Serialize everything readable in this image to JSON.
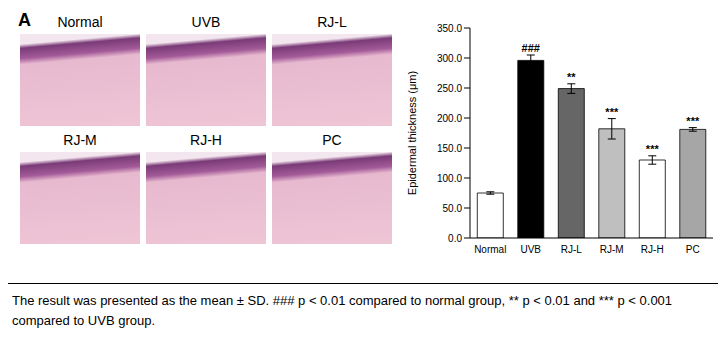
{
  "panel_label": "A",
  "images": [
    "Normal",
    "UVB",
    "RJ-L",
    "RJ-M",
    "RJ-H",
    "PC"
  ],
  "caption": "The result was presented as the mean ± SD. ### p < 0.01 compared to normal group, ** p < 0.01 and *** p < 0.001 compared to UVB group.",
  "chart_data": {
    "type": "bar",
    "y_label": "Epidermal thickness (μm)",
    "categories": [
      "Normal",
      "UVB",
      "RJ-L",
      "RJ-M",
      "RJ-H",
      "PC"
    ],
    "values": [
      75,
      296,
      249,
      182,
      130,
      181
    ],
    "errors": [
      2,
      9,
      8,
      17,
      7,
      3
    ],
    "annotations": [
      null,
      "###",
      "**",
      "***",
      "***",
      "***"
    ],
    "colors": [
      "#ffffff",
      "#000000",
      "#666666",
      "#bfbfbf",
      "#ffffff",
      "#a6a6a6"
    ],
    "ylim": [
      0,
      350
    ],
    "yticks": [
      {
        "value": 0,
        "label": "0.0"
      },
      {
        "value": 50,
        "label": "50.0"
      },
      {
        "value": 100,
        "label": "100.0"
      },
      {
        "value": 150,
        "label": "150.0"
      },
      {
        "value": 200,
        "label": "200.0"
      },
      {
        "value": 250,
        "label": "250.0"
      },
      {
        "value": 300,
        "label": "300.0"
      },
      {
        "value": 350,
        "label": "350.0"
      }
    ],
    "grid": false
  }
}
